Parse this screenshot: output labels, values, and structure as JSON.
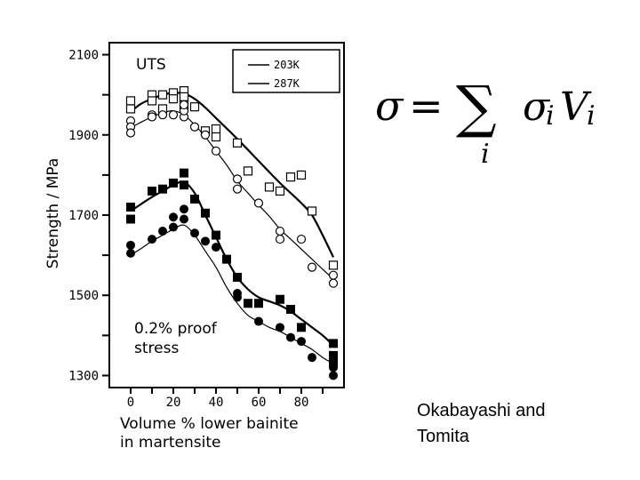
{
  "chart_data": {
    "type": "scatter",
    "ylabel": "Strength / MPa",
    "xlabel_line1": "Volume % lower bainite",
    "xlabel_line2": "in martensite",
    "xlim": [
      -10,
      100
    ],
    "ylim": [
      1270,
      2130
    ],
    "x_ticks": [
      0,
      20,
      40,
      60,
      80
    ],
    "y_ticks": [
      1300,
      1500,
      1700,
      1900,
      2100
    ],
    "legend": [
      {
        "label": "203K",
        "line_width": 1.4
      },
      {
        "label": "287K",
        "line_width": 1.4
      }
    ],
    "annotations": {
      "uts": "UTS",
      "proof_line1": "0.2% proof",
      "proof_line2": "stress"
    },
    "series": [
      {
        "name": "UTS 203K",
        "marker": "open-square",
        "points": [
          [
            0,
            1985
          ],
          [
            0,
            1965
          ],
          [
            10,
            2000
          ],
          [
            10,
            1985
          ],
          [
            15,
            2000
          ],
          [
            15,
            1965
          ],
          [
            20,
            2005
          ],
          [
            20,
            1990
          ],
          [
            25,
            2010
          ],
          [
            25,
            1995
          ],
          [
            25,
            1975
          ],
          [
            30,
            1970
          ],
          [
            35,
            1910
          ],
          [
            40,
            1915
          ],
          [
            40,
            1895
          ],
          [
            50,
            1880
          ],
          [
            55,
            1810
          ],
          [
            65,
            1770
          ],
          [
            70,
            1760
          ],
          [
            75,
            1795
          ],
          [
            80,
            1800
          ],
          [
            85,
            1710
          ],
          [
            95,
            1575
          ]
        ],
        "curve": [
          [
            0,
            1958
          ],
          [
            5,
            1978
          ],
          [
            10,
            1990
          ],
          [
            15,
            2000
          ],
          [
            20,
            2005
          ],
          [
            25,
            2003
          ],
          [
            30,
            1990
          ],
          [
            35,
            1968
          ],
          [
            40,
            1942
          ],
          [
            50,
            1890
          ],
          [
            60,
            1835
          ],
          [
            70,
            1780
          ],
          [
            80,
            1730
          ],
          [
            85,
            1700
          ],
          [
            90,
            1650
          ],
          [
            95,
            1595
          ]
        ]
      },
      {
        "name": "UTS 287K",
        "marker": "open-circle",
        "points": [
          [
            0,
            1935
          ],
          [
            0,
            1920
          ],
          [
            0,
            1905
          ],
          [
            10,
            1950
          ],
          [
            10,
            1945
          ],
          [
            15,
            1950
          ],
          [
            20,
            1950
          ],
          [
            25,
            1945
          ],
          [
            25,
            1960
          ],
          [
            25,
            1975
          ],
          [
            30,
            1920
          ],
          [
            35,
            1900
          ],
          [
            40,
            1860
          ],
          [
            50,
            1790
          ],
          [
            50,
            1765
          ],
          [
            60,
            1730
          ],
          [
            70,
            1660
          ],
          [
            70,
            1640
          ],
          [
            80,
            1640
          ],
          [
            85,
            1570
          ],
          [
            95,
            1550
          ],
          [
            95,
            1530
          ]
        ],
        "curve": [
          [
            0,
            1918
          ],
          [
            5,
            1932
          ],
          [
            10,
            1945
          ],
          [
            15,
            1955
          ],
          [
            20,
            1960
          ],
          [
            25,
            1950
          ],
          [
            30,
            1925
          ],
          [
            35,
            1895
          ],
          [
            40,
            1860
          ],
          [
            45,
            1825
          ],
          [
            50,
            1785
          ],
          [
            55,
            1755
          ],
          [
            60,
            1725
          ],
          [
            65,
            1697
          ],
          [
            70,
            1665
          ],
          [
            75,
            1640
          ],
          [
            80,
            1615
          ],
          [
            85,
            1590
          ],
          [
            90,
            1565
          ],
          [
            95,
            1540
          ]
        ]
      },
      {
        "name": "Proof stress 203K",
        "marker": "filled-square",
        "points": [
          [
            0,
            1720
          ],
          [
            0,
            1690
          ],
          [
            10,
            1760
          ],
          [
            15,
            1765
          ],
          [
            20,
            1780
          ],
          [
            25,
            1805
          ],
          [
            25,
            1775
          ],
          [
            30,
            1740
          ],
          [
            35,
            1705
          ],
          [
            40,
            1650
          ],
          [
            45,
            1590
          ],
          [
            50,
            1545
          ],
          [
            55,
            1480
          ],
          [
            60,
            1480
          ],
          [
            70,
            1490
          ],
          [
            75,
            1465
          ],
          [
            80,
            1420
          ],
          [
            95,
            1380
          ],
          [
            95,
            1350
          ],
          [
            95,
            1330
          ]
        ],
        "curve": [
          [
            0,
            1710
          ],
          [
            5,
            1728
          ],
          [
            10,
            1745
          ],
          [
            15,
            1760
          ],
          [
            20,
            1775
          ],
          [
            25,
            1782
          ],
          [
            30,
            1755
          ],
          [
            35,
            1700
          ],
          [
            40,
            1645
          ],
          [
            45,
            1590
          ],
          [
            50,
            1545
          ],
          [
            55,
            1515
          ],
          [
            60,
            1495
          ],
          [
            65,
            1485
          ],
          [
            70,
            1475
          ],
          [
            75,
            1460
          ],
          [
            80,
            1440
          ],
          [
            85,
            1420
          ],
          [
            90,
            1400
          ],
          [
            95,
            1375
          ]
        ]
      },
      {
        "name": "Proof stress 287K",
        "marker": "filled-circle",
        "points": [
          [
            0,
            1625
          ],
          [
            0,
            1605
          ],
          [
            10,
            1640
          ],
          [
            15,
            1660
          ],
          [
            20,
            1695
          ],
          [
            20,
            1670
          ],
          [
            25,
            1715
          ],
          [
            25,
            1690
          ],
          [
            30,
            1655
          ],
          [
            35,
            1635
          ],
          [
            40,
            1620
          ],
          [
            50,
            1505
          ],
          [
            50,
            1495
          ],
          [
            60,
            1435
          ],
          [
            70,
            1420
          ],
          [
            75,
            1395
          ],
          [
            80,
            1385
          ],
          [
            85,
            1345
          ],
          [
            95,
            1320
          ],
          [
            95,
            1300
          ]
        ],
        "curve": [
          [
            0,
            1600
          ],
          [
            5,
            1617
          ],
          [
            10,
            1635
          ],
          [
            15,
            1650
          ],
          [
            20,
            1665
          ],
          [
            25,
            1675
          ],
          [
            30,
            1650
          ],
          [
            35,
            1610
          ],
          [
            40,
            1570
          ],
          [
            45,
            1520
          ],
          [
            50,
            1480
          ],
          [
            55,
            1450
          ],
          [
            60,
            1435
          ],
          [
            65,
            1420
          ],
          [
            70,
            1410
          ],
          [
            75,
            1395
          ],
          [
            80,
            1380
          ],
          [
            85,
            1365
          ],
          [
            90,
            1345
          ],
          [
            95,
            1330
          ]
        ]
      }
    ]
  },
  "formula": {
    "lhs": "σ",
    "eq": "=",
    "sum": "∑",
    "term_sigma": "σ",
    "sub_i": "i",
    "term_v": "V",
    "index": "i"
  },
  "credit": {
    "line1": "Okabayashi and",
    "line2": "Tomita"
  }
}
